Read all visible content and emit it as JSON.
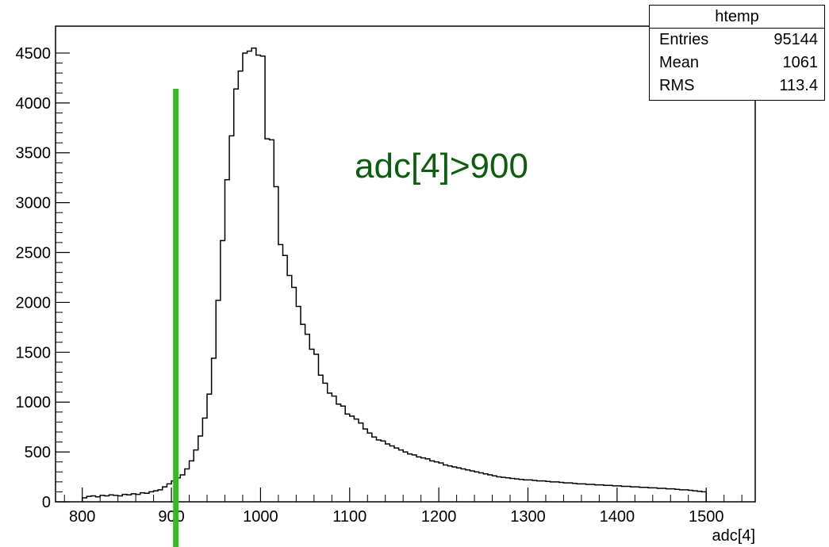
{
  "chart_data": {
    "type": "histogram",
    "title": "",
    "xlabel": "adc[4]",
    "ylabel": "",
    "xlim": [
      770,
      1555
    ],
    "ylim": [
      0,
      4770
    ],
    "bin_width": 5,
    "x_ticks": [
      800,
      900,
      1000,
      1100,
      1200,
      1300,
      1400,
      1500
    ],
    "y_ticks": [
      0,
      500,
      1000,
      1500,
      2000,
      2500,
      3000,
      3500,
      4000,
      4500
    ],
    "bins": [
      [
        800,
        40
      ],
      [
        805,
        55
      ],
      [
        810,
        60
      ],
      [
        815,
        50
      ],
      [
        820,
        65
      ],
      [
        825,
        60
      ],
      [
        830,
        70
      ],
      [
        835,
        65
      ],
      [
        840,
        60
      ],
      [
        845,
        75
      ],
      [
        850,
        70
      ],
      [
        855,
        80
      ],
      [
        860,
        75
      ],
      [
        865,
        90
      ],
      [
        870,
        85
      ],
      [
        875,
        100
      ],
      [
        880,
        110
      ],
      [
        885,
        120
      ],
      [
        890,
        150
      ],
      [
        895,
        180
      ],
      [
        900,
        210
      ],
      [
        905,
        240
      ],
      [
        910,
        270
      ],
      [
        915,
        330
      ],
      [
        920,
        410
      ],
      [
        925,
        520
      ],
      [
        930,
        660
      ],
      [
        935,
        840
      ],
      [
        940,
        1080
      ],
      [
        945,
        1440
      ],
      [
        950,
        2020
      ],
      [
        955,
        2620
      ],
      [
        960,
        3230
      ],
      [
        965,
        3670
      ],
      [
        970,
        4140
      ],
      [
        975,
        4320
      ],
      [
        980,
        4500
      ],
      [
        985,
        4520
      ],
      [
        990,
        4550
      ],
      [
        995,
        4480
      ],
      [
        1000,
        4470
      ],
      [
        1005,
        3640
      ],
      [
        1010,
        3630
      ],
      [
        1015,
        3160
      ],
      [
        1020,
        2580
      ],
      [
        1025,
        2470
      ],
      [
        1030,
        2270
      ],
      [
        1035,
        2150
      ],
      [
        1040,
        1960
      ],
      [
        1045,
        1780
      ],
      [
        1050,
        1680
      ],
      [
        1055,
        1530
      ],
      [
        1060,
        1480
      ],
      [
        1065,
        1270
      ],
      [
        1070,
        1190
      ],
      [
        1075,
        1090
      ],
      [
        1080,
        1060
      ],
      [
        1085,
        980
      ],
      [
        1090,
        960
      ],
      [
        1095,
        880
      ],
      [
        1100,
        860
      ],
      [
        1105,
        830
      ],
      [
        1110,
        790
      ],
      [
        1115,
        730
      ],
      [
        1120,
        690
      ],
      [
        1125,
        650
      ],
      [
        1130,
        620
      ],
      [
        1135,
        610
      ],
      [
        1140,
        580
      ],
      [
        1145,
        560
      ],
      [
        1150,
        540
      ],
      [
        1155,
        520
      ],
      [
        1160,
        500
      ],
      [
        1165,
        480
      ],
      [
        1170,
        470
      ],
      [
        1175,
        450
      ],
      [
        1180,
        440
      ],
      [
        1185,
        430
      ],
      [
        1190,
        410
      ],
      [
        1195,
        400
      ],
      [
        1200,
        390
      ],
      [
        1205,
        370
      ],
      [
        1210,
        360
      ],
      [
        1215,
        350
      ],
      [
        1220,
        340
      ],
      [
        1225,
        330
      ],
      [
        1230,
        320
      ],
      [
        1235,
        310
      ],
      [
        1240,
        300
      ],
      [
        1245,
        290
      ],
      [
        1250,
        280
      ],
      [
        1255,
        270
      ],
      [
        1260,
        260
      ],
      [
        1265,
        250
      ],
      [
        1270,
        245
      ],
      [
        1275,
        240
      ],
      [
        1280,
        235
      ],
      [
        1285,
        230
      ],
      [
        1290,
        225
      ],
      [
        1295,
        220
      ],
      [
        1300,
        220
      ],
      [
        1305,
        215
      ],
      [
        1310,
        210
      ],
      [
        1315,
        210
      ],
      [
        1320,
        205
      ],
      [
        1325,
        200
      ],
      [
        1330,
        200
      ],
      [
        1335,
        195
      ],
      [
        1340,
        190
      ],
      [
        1345,
        190
      ],
      [
        1350,
        185
      ],
      [
        1355,
        180
      ],
      [
        1360,
        180
      ],
      [
        1365,
        175
      ],
      [
        1370,
        175
      ],
      [
        1375,
        170
      ],
      [
        1380,
        170
      ],
      [
        1385,
        165
      ],
      [
        1390,
        165
      ],
      [
        1395,
        160
      ],
      [
        1400,
        160
      ],
      [
        1405,
        155
      ],
      [
        1410,
        155
      ],
      [
        1415,
        150
      ],
      [
        1420,
        150
      ],
      [
        1425,
        145
      ],
      [
        1430,
        145
      ],
      [
        1435,
        140
      ],
      [
        1440,
        140
      ],
      [
        1445,
        135
      ],
      [
        1450,
        135
      ],
      [
        1455,
        130
      ],
      [
        1460,
        130
      ],
      [
        1465,
        125
      ],
      [
        1470,
        120
      ],
      [
        1475,
        120
      ],
      [
        1480,
        115
      ],
      [
        1485,
        110
      ],
      [
        1490,
        105
      ],
      [
        1495,
        100
      ]
    ],
    "cut_line": {
      "x": 905,
      "color": "#33bb22"
    },
    "annotation": {
      "text": "adc[4]>900",
      "color": "#0b5e0b"
    },
    "stats_box": {
      "title": "htemp",
      "rows": [
        {
          "label": "Entries",
          "value": "95144"
        },
        {
          "label": "Mean",
          "value": "1061"
        },
        {
          "label": "RMS",
          "value": "113.4"
        }
      ]
    }
  }
}
